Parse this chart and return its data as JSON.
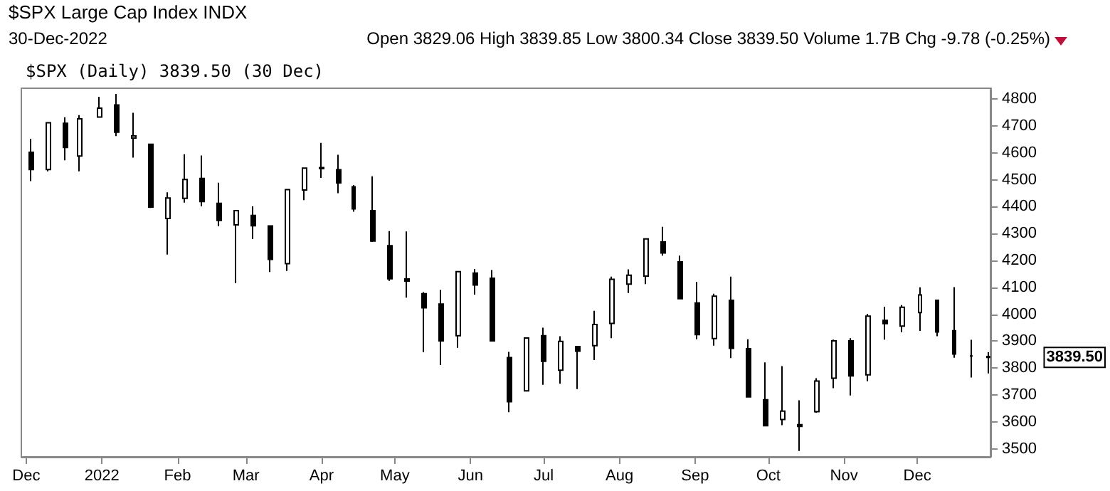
{
  "chart_data": {
    "type": "candlestick",
    "title": "$SPX Large Cap Index INDX",
    "subtitle": "30-Dec-2022",
    "annotations": [
      "Open 3829.06 High 3839.85 Low 3800.34 Close 3839.50 Volume 1.7B Chg -9.78 (-0.25%)",
      "$SPX (Daily) 3839.50 (30 Dec)",
      "3839.50"
    ],
    "x": [
      "2021-12-03",
      "2021-12-10",
      "2021-12-17",
      "2021-12-23",
      "2021-12-31",
      "2022-01-07",
      "2022-01-14",
      "2022-01-21",
      "2022-01-28",
      "2022-02-04",
      "2022-02-11",
      "2022-02-18",
      "2022-02-25",
      "2022-03-04",
      "2022-03-11",
      "2022-03-18",
      "2022-03-25",
      "2022-04-01",
      "2022-04-08",
      "2022-04-14",
      "2022-04-22",
      "2022-04-29",
      "2022-05-06",
      "2022-05-13",
      "2022-05-20",
      "2022-05-27",
      "2022-06-03",
      "2022-06-10",
      "2022-06-17",
      "2022-06-24",
      "2022-07-01",
      "2022-07-08",
      "2022-07-15",
      "2022-07-22",
      "2022-07-29",
      "2022-08-05",
      "2022-08-12",
      "2022-08-19",
      "2022-08-26",
      "2022-09-02",
      "2022-09-09",
      "2022-09-16",
      "2022-09-23",
      "2022-09-30",
      "2022-10-07",
      "2022-10-14",
      "2022-10-21",
      "2022-10-28",
      "2022-11-04",
      "2022-11-11",
      "2022-11-18",
      "2022-11-25",
      "2022-12-02",
      "2022-12-09",
      "2022-12-16",
      "2022-12-23",
      "2022-12-30"
    ],
    "ohlc": [
      [
        4602,
        4652,
        4495,
        4538
      ],
      [
        4538,
        4713,
        4531,
        4712
      ],
      [
        4710,
        4732,
        4572,
        4620
      ],
      [
        4588,
        4740,
        4531,
        4726
      ],
      [
        4733,
        4808,
        4733,
        4766
      ],
      [
        4778,
        4819,
        4662,
        4677
      ],
      [
        4655,
        4749,
        4582,
        4663
      ],
      [
        4632,
        4632,
        4395,
        4398
      ],
      [
        4356,
        4453,
        4222,
        4432
      ],
      [
        4431,
        4595,
        4415,
        4501
      ],
      [
        4505,
        4590,
        4401,
        4419
      ],
      [
        4412,
        4489,
        4327,
        4349
      ],
      [
        4332,
        4385,
        4115,
        4385
      ],
      [
        4367,
        4401,
        4279,
        4329
      ],
      [
        4328,
        4329,
        4157,
        4204
      ],
      [
        4188,
        4465,
        4161,
        4463
      ],
      [
        4462,
        4546,
        4424,
        4543
      ],
      [
        4541,
        4637,
        4507,
        4545
      ],
      [
        4537,
        4593,
        4450,
        4488
      ],
      [
        4474,
        4480,
        4381,
        4392
      ],
      [
        4385,
        4513,
        4269,
        4272
      ],
      [
        4255,
        4309,
        4124,
        4132
      ],
      [
        4131,
        4308,
        4062,
        4123
      ],
      [
        4076,
        4082,
        3859,
        4024
      ],
      [
        4038,
        4090,
        3811,
        3901
      ],
      [
        3920,
        4158,
        3875,
        4158
      ],
      [
        4153,
        4168,
        4073,
        4109
      ],
      [
        4134,
        4164,
        3901,
        3901
      ],
      [
        3839,
        3860,
        3636,
        3675
      ],
      [
        3715,
        3914,
        3715,
        3912
      ],
      [
        3920,
        3950,
        3738,
        3825
      ],
      [
        3792,
        3918,
        3742,
        3899
      ],
      [
        3880,
        3880,
        3722,
        3863
      ],
      [
        3883,
        4013,
        3830,
        3962
      ],
      [
        3966,
        4140,
        3911,
        4130
      ],
      [
        4112,
        4167,
        4079,
        4145
      ],
      [
        4142,
        4280,
        4112,
        4280
      ],
      [
        4269,
        4325,
        4218,
        4228
      ],
      [
        4195,
        4218,
        4057,
        4058
      ],
      [
        4042,
        4120,
        3907,
        3924
      ],
      [
        3910,
        4076,
        3883,
        4067
      ],
      [
        4052,
        4140,
        3837,
        3873
      ],
      [
        3872,
        3907,
        3693,
        3693
      ],
      [
        3682,
        3821,
        3584,
        3586
      ],
      [
        3609,
        3807,
        3588,
        3640
      ],
      [
        3590,
        3680,
        3492,
        3583
      ],
      [
        3638,
        3762,
        3634,
        3752
      ],
      [
        3762,
        3906,
        3725,
        3901
      ],
      [
        3901,
        3911,
        3698,
        3771
      ],
      [
        3775,
        4001,
        3751,
        3993
      ],
      [
        3977,
        4028,
        3906,
        3965
      ],
      [
        3956,
        4034,
        3933,
        4026
      ],
      [
        4006,
        4100,
        3938,
        4072
      ],
      [
        4052,
        4053,
        3918,
        3934
      ],
      [
        3939,
        4101,
        3838,
        3852
      ],
      [
        3845,
        3905,
        3765,
        3845
      ],
      [
        3843,
        3859,
        3780,
        3839.5
      ]
    ],
    "color": "#000000",
    "xlim": [
      "2021-11-29",
      "2022-12-31"
    ],
    "xticks": [
      {
        "value": "2021-12-01",
        "label": "Dec"
      },
      {
        "value": "2022-01-01",
        "label": "2022"
      },
      {
        "value": "2022-02-01",
        "label": "Feb"
      },
      {
        "value": "2022-03-01",
        "label": "Mar"
      },
      {
        "value": "2022-04-01",
        "label": "Apr"
      },
      {
        "value": "2022-05-01",
        "label": "May"
      },
      {
        "value": "2022-06-01",
        "label": "Jun"
      },
      {
        "value": "2022-07-01",
        "label": "Jul"
      },
      {
        "value": "2022-08-01",
        "label": "Aug"
      },
      {
        "value": "2022-09-01",
        "label": "Sep"
      },
      {
        "value": "2022-10-01",
        "label": "Oct"
      },
      {
        "value": "2022-11-01",
        "label": "Nov"
      },
      {
        "value": "2022-12-01",
        "label": "Dec"
      }
    ],
    "ylim": [
      3470,
      4840
    ],
    "yticks": [
      3500,
      3600,
      3700,
      3800,
      3900,
      4000,
      4100,
      4200,
      4300,
      4400,
      4500,
      4600,
      4700,
      4800
    ],
    "grid": false
  }
}
